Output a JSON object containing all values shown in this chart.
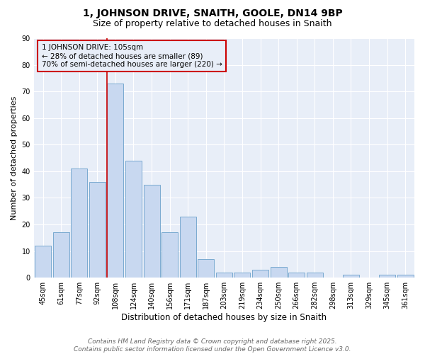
{
  "title1": "1, JOHNSON DRIVE, SNAITH, GOOLE, DN14 9BP",
  "title2": "Size of property relative to detached houses in Snaith",
  "xlabel": "Distribution of detached houses by size in Snaith",
  "ylabel": "Number of detached properties",
  "categories": [
    "45sqm",
    "61sqm",
    "77sqm",
    "92sqm",
    "108sqm",
    "124sqm",
    "140sqm",
    "156sqm",
    "171sqm",
    "187sqm",
    "203sqm",
    "219sqm",
    "234sqm",
    "250sqm",
    "266sqm",
    "282sqm",
    "298sqm",
    "313sqm",
    "329sqm",
    "345sqm",
    "361sqm"
  ],
  "values": [
    12,
    17,
    41,
    36,
    73,
    44,
    35,
    17,
    23,
    7,
    2,
    2,
    3,
    4,
    2,
    2,
    0,
    1,
    0,
    1,
    1
  ],
  "bar_color": "#c8d8f0",
  "bar_edge_color": "#7aaad0",
  "vline_color": "#cc0000",
  "annotation_line1": "1 JOHNSON DRIVE: 105sqm",
  "annotation_line2": "← 28% of detached houses are smaller (89)",
  "annotation_line3": "70% of semi-detached houses are larger (220) →",
  "annotation_box_color": "#cc0000",
  "footer1": "Contains HM Land Registry data © Crown copyright and database right 2025.",
  "footer2": "Contains public sector information licensed under the Open Government Licence v3.0.",
  "ylim": [
    0,
    90
  ],
  "yticks": [
    0,
    10,
    20,
    30,
    40,
    50,
    60,
    70,
    80,
    90
  ],
  "background_color": "#ffffff",
  "plot_bg_color": "#e8eef8",
  "grid_color": "#ffffff",
  "title1_fontsize": 10,
  "title2_fontsize": 9,
  "xlabel_fontsize": 8.5,
  "ylabel_fontsize": 8,
  "tick_fontsize": 7,
  "annotation_fontsize": 7.5,
  "footer_fontsize": 6.5
}
